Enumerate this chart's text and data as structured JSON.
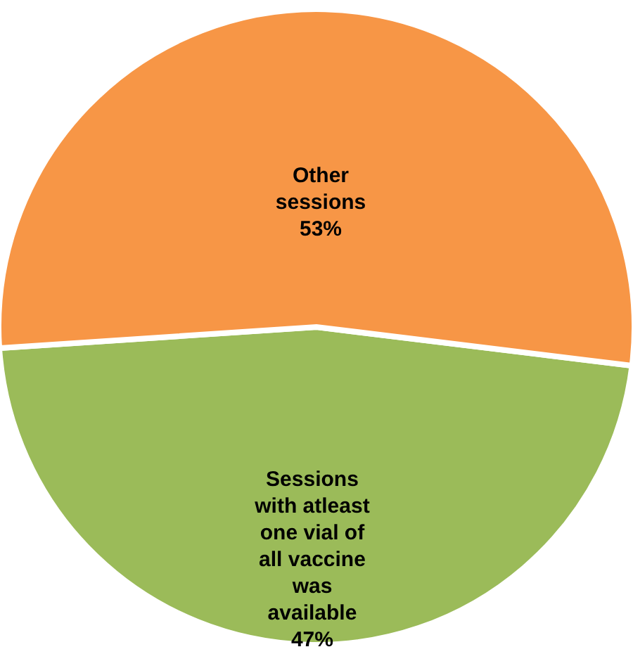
{
  "chart_data": {
    "type": "pie",
    "categories": [
      "Sessions with atleast one vial of all vaccine was available",
      "Other sessions"
    ],
    "values": [
      47,
      53
    ],
    "colors": [
      "#9bbb59",
      "#f79646"
    ],
    "value_labels": [
      "47%",
      "53%"
    ]
  }
}
